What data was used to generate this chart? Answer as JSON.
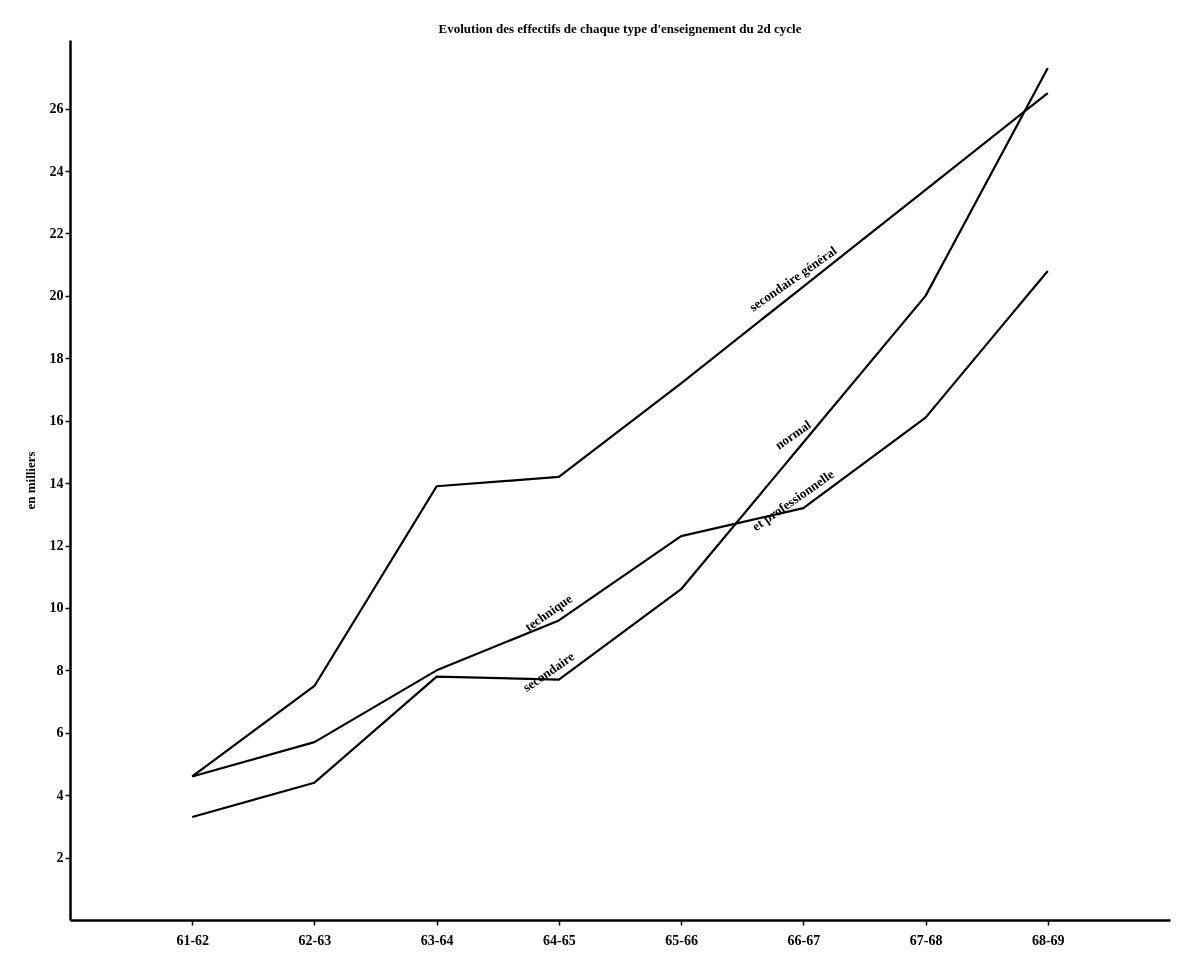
{
  "chart_data": {
    "type": "line",
    "title": "Evolution des effectifs de chaque type d'enseignement du 2d cycle",
    "ylabel": "en milliers",
    "categories": [
      "61-62",
      "62-63",
      "63-64",
      "64-65",
      "65-66",
      "66-67",
      "67-68",
      "68-69"
    ],
    "series": [
      {
        "color": "#000000",
        "values": [
          4.6,
          7.5,
          13.9,
          14.2,
          17.2,
          20.3,
          23.4,
          26.5
        ]
      },
      {
        "color": "#000000",
        "values": [
          4.6,
          5.7,
          8.0,
          9.6,
          12.3,
          13.2,
          16.1,
          20.8
        ]
      },
      {
        "color": "#000000",
        "values": [
          3.3,
          4.4,
          7.8,
          7.7,
          10.6,
          15.3,
          20.0,
          27.3
        ]
      }
    ],
    "annotations": [
      {
        "text": "secondaire général",
        "x": "66-67",
        "y": 20.3
      },
      {
        "text": "technique",
        "x": "64-65",
        "y": 9.6
      },
      {
        "text": "secondaire",
        "x": "64-65",
        "y": 7.7
      },
      {
        "text": "normal",
        "x": "66-67",
        "y": 15.3
      },
      {
        "text": "et professionnelle",
        "x": "66-67",
        "y": 13.2
      }
    ],
    "ylim": [
      0,
      28.2
    ],
    "yticks": [
      2,
      4,
      6,
      8,
      10,
      12,
      14,
      16,
      18,
      20,
      22,
      24,
      26
    ],
    "grid": false,
    "legend": false,
    "marker": "none",
    "line_style": "solid"
  }
}
